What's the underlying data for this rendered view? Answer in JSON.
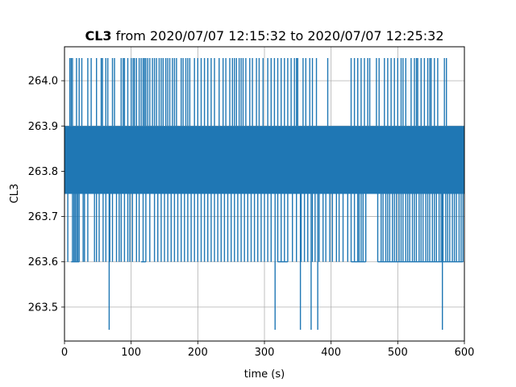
{
  "chart_data": {
    "type": "line",
    "title_bold": "CL3",
    "title_rest": " from 2020/07/07 12:15:32 to 2020/07/07 12:25:32",
    "xlabel": "time (s)",
    "ylabel": "CL3",
    "xlim": [
      0,
      600
    ],
    "ylim": [
      263.425,
      264.075
    ],
    "xticks": [
      0,
      100,
      200,
      300,
      400,
      500,
      600
    ],
    "yticks": [
      263.5,
      263.6,
      263.7,
      263.8,
      263.9,
      264.0
    ],
    "ytick_labels": [
      "263.5",
      "263.6",
      "263.7",
      "263.8",
      "263.9",
      "264.0"
    ],
    "grid": true,
    "series": [
      {
        "color": "#1f77b4",
        "band_low": 263.75,
        "band_high": 263.9,
        "upper_spike_level": 264.05,
        "lower_spike_level": 263.6,
        "outlier_level": 263.45,
        "outlier_times": [
          67,
          316,
          354,
          370,
          380,
          567
        ],
        "upper_spike_times": [
          8,
          10,
          12,
          18,
          22,
          26,
          35,
          40,
          48,
          55,
          57,
          62,
          65,
          72,
          75,
          85,
          88,
          90,
          95,
          100,
          103,
          105,
          108,
          112,
          115,
          118,
          120,
          122,
          125,
          128,
          132,
          135,
          138,
          142,
          145,
          148,
          152,
          155,
          158,
          162,
          165,
          168,
          175,
          178,
          182,
          185,
          188,
          195,
          200,
          205,
          210,
          215,
          220,
          225,
          232,
          238,
          242,
          248,
          252,
          255,
          258,
          262,
          265,
          268,
          272,
          278,
          282,
          288,
          292,
          298,
          305,
          310,
          315,
          320,
          325,
          330,
          335,
          340,
          345,
          348,
          350,
          358,
          362,
          368,
          372,
          378,
          395,
          430,
          435,
          440,
          445,
          450,
          455,
          458,
          468,
          472,
          480,
          485,
          490,
          495,
          500,
          505,
          508,
          512,
          520,
          525,
          528,
          530,
          535,
          540,
          545,
          548,
          550,
          555,
          560,
          570,
          573
        ],
        "lower_spike_times": [
          5,
          12,
          14,
          16,
          18,
          20,
          22,
          28,
          30,
          35,
          45,
          48,
          52,
          58,
          62,
          68,
          72,
          78,
          82,
          85,
          90,
          95,
          98,
          102,
          108,
          112,
          118,
          122,
          128,
          135,
          140,
          145,
          150,
          155,
          160,
          165,
          170,
          175,
          180,
          185,
          190,
          195,
          200,
          205,
          210,
          215,
          220,
          225,
          230,
          235,
          240,
          245,
          250,
          255,
          260,
          265,
          270,
          275,
          280,
          285,
          290,
          295,
          300,
          305,
          310,
          320,
          325,
          330,
          335,
          342,
          348,
          355,
          360,
          365,
          372,
          376,
          382,
          388,
          392,
          398,
          402,
          408,
          412,
          418,
          425,
          430,
          435,
          440,
          442,
          445,
          448,
          452,
          470,
          475,
          478,
          482,
          485,
          488,
          492,
          495,
          498,
          502,
          505,
          508,
          512,
          515,
          518,
          522,
          525,
          528,
          532,
          535,
          538,
          542,
          545,
          548,
          552,
          555,
          558,
          562,
          565,
          568,
          572,
          575,
          578,
          582,
          585,
          588,
          592,
          595,
          598
        ]
      }
    ]
  }
}
